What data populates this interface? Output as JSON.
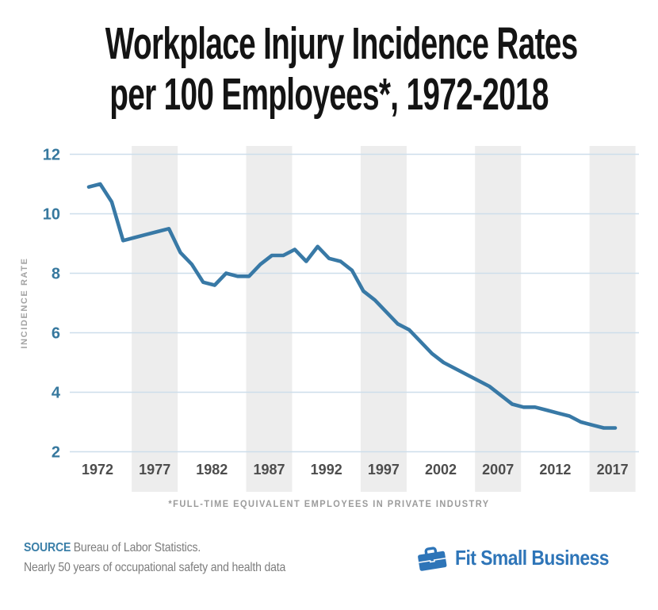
{
  "title": {
    "line1": "Workplace Injury Incidence Rates",
    "line2": "per 100 Employees*, 1972-2018"
  },
  "chart_data": {
    "type": "line",
    "title": "Workplace Injury Incidence Rates per 100 Employees*, 1972-2018",
    "xlabel": "",
    "ylabel": "INCIDENCE RATE",
    "x": [
      1972,
      1973,
      1974,
      1975,
      1976,
      1977,
      1978,
      1979,
      1980,
      1981,
      1982,
      1983,
      1984,
      1985,
      1986,
      1987,
      1988,
      1989,
      1990,
      1991,
      1992,
      1993,
      1994,
      1995,
      1996,
      1997,
      1998,
      1999,
      2000,
      2001,
      2002,
      2003,
      2004,
      2005,
      2006,
      2007,
      2008,
      2009,
      2010,
      2011,
      2012,
      2013,
      2014,
      2015,
      2016,
      2017,
      2018
    ],
    "values": [
      10.9,
      11.0,
      10.4,
      9.1,
      9.2,
      9.3,
      9.4,
      9.5,
      8.7,
      8.3,
      7.7,
      7.6,
      8.0,
      7.9,
      7.9,
      8.3,
      8.6,
      8.6,
      8.8,
      8.4,
      8.9,
      8.5,
      8.4,
      8.1,
      7.4,
      7.1,
      6.7,
      6.3,
      6.1,
      5.7,
      5.3,
      5.0,
      4.8,
      4.6,
      4.4,
      4.2,
      3.9,
      3.6,
      3.5,
      3.5,
      3.4,
      3.3,
      3.2,
      3.0,
      2.9,
      2.8,
      2.8
    ],
    "x_tick_labels": [
      "1972",
      "1977",
      "1982",
      "1987",
      "1992",
      "1997",
      "2002",
      "2007",
      "2012",
      "2017"
    ],
    "y_ticks": [
      2,
      4,
      6,
      8,
      10,
      12
    ],
    "ylim": [
      2,
      12
    ],
    "x_range": [
      1972,
      2018
    ],
    "grid": "horizontal",
    "banded_year_columns": [
      1977,
      1987,
      1997,
      2007,
      2017
    ],
    "legend": "none",
    "footnote": "*FULL-TIME EQUIVALENT EMPLOYEES IN PRIVATE INDUSTRY",
    "colors": {
      "line": "#3879a6",
      "gridline": "#cddeeb",
      "band": "#ededed",
      "y_tick": "#36789e",
      "x_tick": "#4d4d4d",
      "axis_label": "#a3a3a3"
    }
  },
  "footer": {
    "source_label": "SOURCE",
    "source_text": "Bureau of Labor Statistics.",
    "tagline": "Nearly 50 years of occupational safety and health data",
    "brand_name": "Fit Small Business",
    "brand_color": "#2e75b8"
  }
}
